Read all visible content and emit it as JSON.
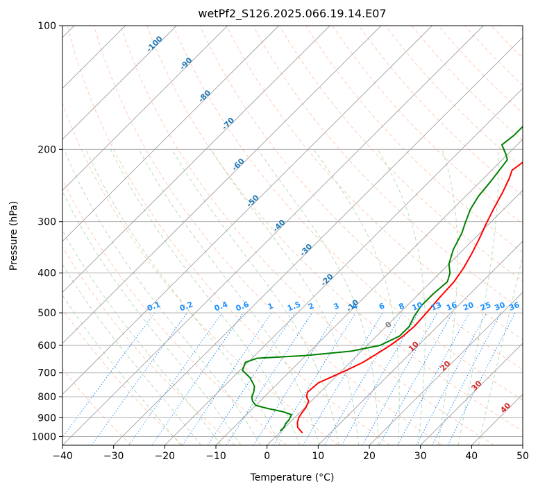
{
  "chart_data": {
    "type": "line",
    "subtype": "skew-T log-P diagram",
    "title": "wetPf2_S126.2025.066.19.14.E07",
    "xlabel": "Temperature (°C)",
    "ylabel": "Pressure (hPa)",
    "xlim": [
      -40,
      50
    ],
    "ylim": [
      1050,
      100
    ],
    "yscale": "log",
    "xticks": [
      -40,
      -30,
      -20,
      -10,
      0,
      10,
      20,
      30,
      40,
      50
    ],
    "yticks": [
      100,
      200,
      300,
      400,
      500,
      600,
      700,
      800,
      900,
      1000
    ],
    "grid": true,
    "colors": {
      "temperature": "#ff0000",
      "dewpoint": "#008000",
      "isotherms": "#a0a0a0",
      "dry_adiabats": "#ff8c5a",
      "moist_adiabats": "#7fbf7f",
      "mixing_ratio": "#1e90ff",
      "adiabat_labels": "#1f77b4",
      "moist_adiabat_labels": "#d62728"
    },
    "series": [
      {
        "key": "temperature",
        "points": [
          [
            4.5,
            980
          ],
          [
            3.5,
            965
          ],
          [
            2.5,
            950
          ],
          [
            1.5,
            925
          ],
          [
            0.8,
            900
          ],
          [
            0.5,
            880
          ],
          [
            0.2,
            850
          ],
          [
            -0.5,
            820
          ],
          [
            -1.8,
            800
          ],
          [
            -2.5,
            780
          ],
          [
            -2.2,
            740
          ],
          [
            -1.0,
            720
          ],
          [
            0.8,
            690
          ],
          [
            2.5,
            660
          ],
          [
            3.5,
            630
          ],
          [
            4.5,
            600
          ],
          [
            5.2,
            570
          ],
          [
            5.5,
            540
          ],
          [
            5.2,
            500
          ],
          [
            4.8,
            460
          ],
          [
            4.5,
            420
          ],
          [
            3.7,
            390
          ],
          [
            2.5,
            360
          ],
          [
            1.0,
            330
          ],
          [
            -0.5,
            305
          ],
          [
            -2.0,
            280
          ],
          [
            -3.5,
            255
          ],
          [
            -5.0,
            235
          ],
          [
            -6.0,
            225
          ],
          [
            -5.5,
            215
          ],
          [
            -3.0,
            208
          ],
          [
            1.0,
            200
          ],
          [
            6.0,
            190
          ],
          [
            10.5,
            178
          ],
          [
            13.0,
            165
          ],
          [
            15.0,
            150
          ],
          [
            17.5,
            140
          ],
          [
            20.0,
            130
          ],
          [
            22.5,
            120
          ],
          [
            25.5,
            110
          ],
          [
            30.5,
            100
          ]
        ]
      },
      {
        "key": "dewpoint",
        "points": [
          [
            -0.2,
            970
          ],
          [
            -0.2,
            950
          ],
          [
            -0.6,
            930
          ],
          [
            -0.7,
            910
          ],
          [
            -1.2,
            885
          ],
          [
            -3.5,
            870
          ],
          [
            -7.0,
            855
          ],
          [
            -10.0,
            840
          ],
          [
            -11.5,
            820
          ],
          [
            -12.5,
            800
          ],
          [
            -13.0,
            780
          ],
          [
            -14.0,
            755
          ],
          [
            -16.5,
            720
          ],
          [
            -19.5,
            690
          ],
          [
            -20.5,
            660
          ],
          [
            -19.0,
            645
          ],
          [
            -10.0,
            635
          ],
          [
            -2.0,
            620
          ],
          [
            2.5,
            600
          ],
          [
            4.5,
            570
          ],
          [
            4.5,
            540
          ],
          [
            3.5,
            510
          ],
          [
            2.8,
            480
          ],
          [
            2.8,
            450
          ],
          [
            3.2,
            420
          ],
          [
            2.0,
            400
          ],
          [
            0.0,
            380
          ],
          [
            -2.0,
            350
          ],
          [
            -3.5,
            320
          ],
          [
            -5.0,
            300
          ],
          [
            -6.5,
            280
          ],
          [
            -7.5,
            260
          ],
          [
            -8.0,
            240
          ],
          [
            -8.5,
            225
          ],
          [
            -9.0,
            212
          ],
          [
            -10.5,
            205
          ],
          [
            -13.0,
            195
          ],
          [
            -12.5,
            185
          ],
          [
            -12.5,
            175
          ],
          [
            -13.0,
            168
          ],
          [
            -11.5,
            160
          ],
          [
            -11.0,
            150
          ],
          [
            -10.0,
            142
          ],
          [
            -8.5,
            135
          ],
          [
            -6.0,
            128
          ],
          [
            -4.0,
            120
          ],
          [
            -1.5,
            110
          ],
          [
            1.5,
            100
          ]
        ]
      }
    ],
    "mixing_ratio_labels": [
      "0.1",
      "0.2",
      "0.4",
      "0.6",
      "1",
      "1.5",
      "2",
      "3",
      "4",
      "6",
      "8",
      "10",
      "13",
      "16",
      "20",
      "25",
      "30",
      "36"
    ],
    "dry_adiabat_labels": [
      "-100",
      "-90",
      "-80",
      "-70",
      "-60",
      "-50",
      "-40",
      "-30",
      "-20",
      "-10"
    ],
    "moist_adiabat_labels": [
      "0",
      "10",
      "20",
      "30",
      "40"
    ]
  }
}
